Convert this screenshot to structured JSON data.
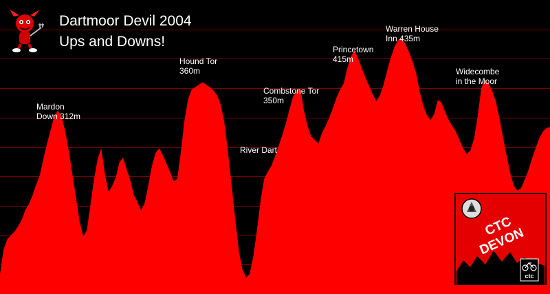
{
  "chart_data": {
    "type": "area",
    "title_lines": [
      "Dartmoor Devil 2004",
      "Ups and Downs!"
    ],
    "xlabel": "",
    "ylabel": "",
    "grid": true,
    "ylim": [
      0,
      500
    ],
    "colors": {
      "fill": "#ff0000",
      "background": "#000000",
      "grid": "#7a0000"
    },
    "y": [
      34,
      76,
      93,
      100,
      106,
      115,
      126,
      143,
      153,
      168,
      186,
      202,
      230,
      256,
      279,
      302,
      312,
      302,
      278,
      244,
      204,
      164,
      124,
      98,
      108,
      152,
      196,
      230,
      248,
      204,
      174,
      184,
      198,
      224,
      232,
      212,
      194,
      168,
      156,
      142,
      155,
      185,
      218,
      240,
      248,
      236,
      222,
      208,
      192,
      196,
      242,
      296,
      332,
      348,
      352,
      356,
      360,
      356,
      352,
      346,
      338,
      322,
      292,
      242,
      186,
      128,
      74,
      42,
      28,
      34,
      64,
      108,
      158,
      196,
      208,
      218,
      234,
      252,
      270,
      290,
      314,
      336,
      344,
      350,
      312,
      286,
      268,
      262,
      256,
      274,
      286,
      300,
      316,
      334,
      348,
      358,
      384,
      404,
      415,
      400,
      384,
      368,
      354,
      340,
      328,
      338,
      356,
      380,
      402,
      420,
      432,
      435,
      426,
      412,
      396,
      376,
      344,
      320,
      304,
      296,
      306,
      330,
      326,
      310,
      296,
      286,
      276,
      262,
      248,
      238,
      244,
      264,
      302,
      350,
      364,
      358,
      346,
      328,
      300,
      268,
      236,
      206,
      184,
      176,
      180,
      194,
      210,
      230,
      248,
      264,
      276,
      282,
      284
    ],
    "annotations": [
      {
        "lines": [
          "Mardon",
          "Down 312m"
        ]
      },
      {
        "lines": [
          "Hound Tor",
          "360m"
        ]
      },
      {
        "lines": [
          "Combstone Tor",
          "350m"
        ]
      },
      {
        "lines": [
          "River Dart"
        ]
      },
      {
        "lines": [
          "Princetown",
          "415m"
        ]
      },
      {
        "lines": [
          "Warren House",
          "Inn 435m"
        ]
      },
      {
        "lines": [
          "Widecombe",
          "in the Moor"
        ]
      }
    ]
  },
  "logo": {
    "text_lines": [
      "CTC",
      "DEVON"
    ],
    "small_text": "ctc",
    "colors": {
      "bg": "#e50000",
      "border": "#000000",
      "text": "#ffffff"
    }
  },
  "mascot": {
    "name": "devil-mascot-icon",
    "color": "#e00000"
  }
}
